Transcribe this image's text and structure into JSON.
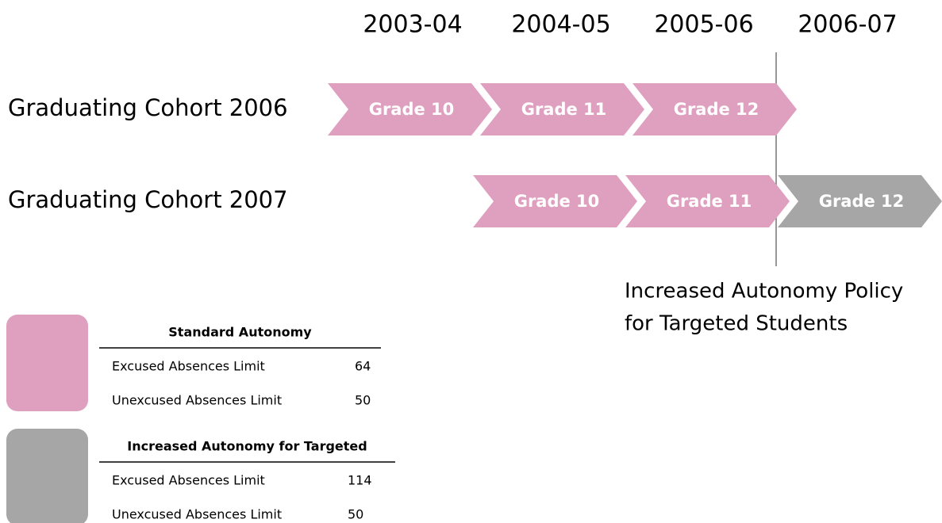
{
  "years": [
    "2003-04",
    "2004-05",
    "2005-06",
    "2006-07"
  ],
  "cohorts": [
    {
      "label": "Graduating Cohort 2006",
      "grades": [
        {
          "label": "Grade 10",
          "color": "#dfa0c0"
        },
        {
          "label": "Grade 11",
          "color": "#dfa0c0"
        },
        {
          "label": "Grade 12",
          "color": "#dfa0c0"
        }
      ]
    },
    {
      "label": "Graduating Cohort 2007",
      "grades": [
        {
          "label": "Grade 10",
          "color": "#dfa0c0"
        },
        {
          "label": "Grade 11",
          "color": "#dfa0c0"
        },
        {
          "label": "Grade 12",
          "color": "#a6a6a6"
        }
      ]
    }
  ],
  "policy_label": [
    "Increased Autonomy Policy",
    "for Targeted Students"
  ],
  "legend": [
    {
      "color": "#dfa0c0",
      "title": "Standard Autonomy",
      "rows": [
        [
          "Excused Absences Limit",
          "64"
        ],
        [
          "Unexcused Absences Limit",
          "50"
        ]
      ]
    },
    {
      "color": "#a6a6a6",
      "title": "Increased Autonomy for Targeted",
      "rows": [
        [
          "Excused Absences Limit",
          "114"
        ],
        [
          "Unexcused Absences Limit",
          "50"
        ]
      ]
    }
  ]
}
